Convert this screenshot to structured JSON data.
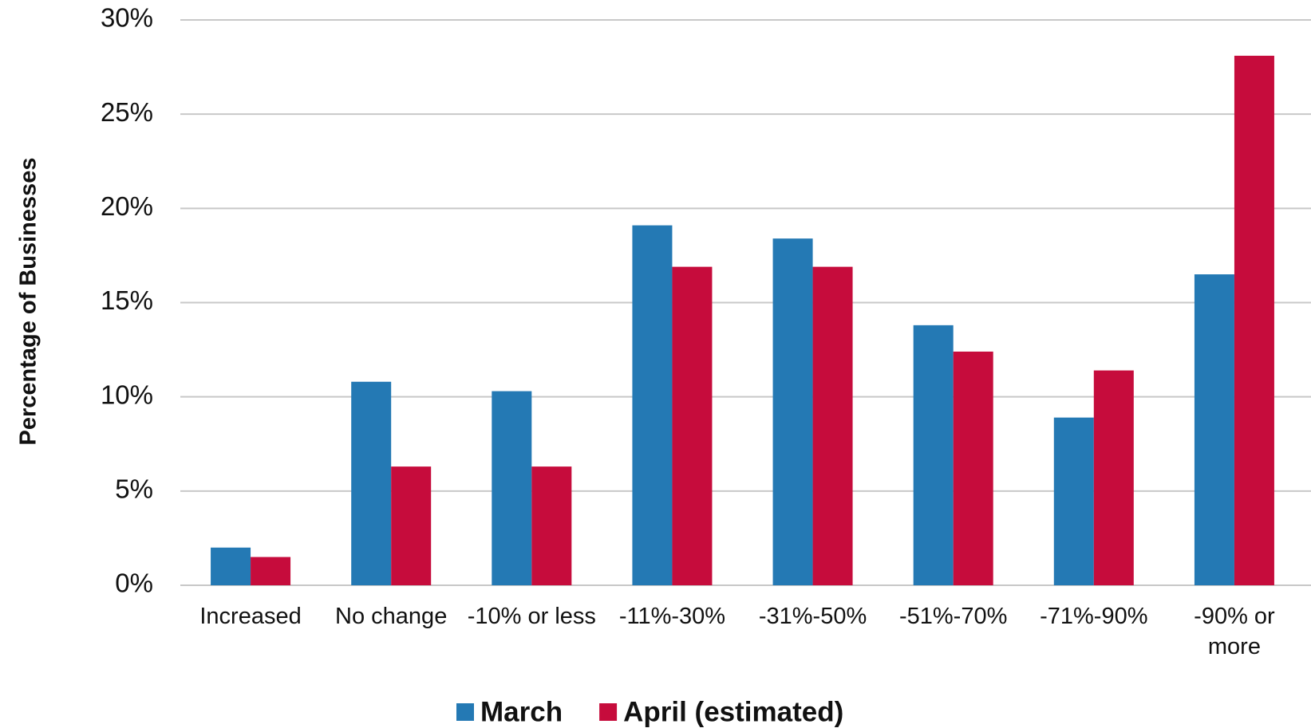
{
  "chart_data": {
    "type": "bar",
    "y_axis_label": "Percentage of Businesses",
    "categories": [
      "Increased",
      "No change",
      "-10% or less",
      "-11%-30%",
      "-31%-50%",
      "-51%-70%",
      "-71%-90%",
      "-90% or more"
    ],
    "series": [
      {
        "name": "March",
        "color": "#2479b4",
        "values": [
          2.0,
          10.8,
          10.3,
          19.1,
          18.4,
          13.8,
          8.9,
          16.5
        ]
      },
      {
        "name": "April (estimated)",
        "color": "#c60c3c",
        "values": [
          1.5,
          6.3,
          6.3,
          16.9,
          16.9,
          12.4,
          11.4,
          28.1
        ]
      }
    ],
    "ylim": [
      0,
      30
    ],
    "yticks": [
      {
        "value": 0,
        "label": "0%"
      },
      {
        "value": 5,
        "label": "5%"
      },
      {
        "value": 10,
        "label": "10%"
      },
      {
        "value": 15,
        "label": "15%"
      },
      {
        "value": 20,
        "label": "20%"
      },
      {
        "value": 25,
        "label": "25%"
      },
      {
        "value": 30,
        "label": "30%"
      }
    ],
    "grid": true,
    "legend": "bottom"
  }
}
